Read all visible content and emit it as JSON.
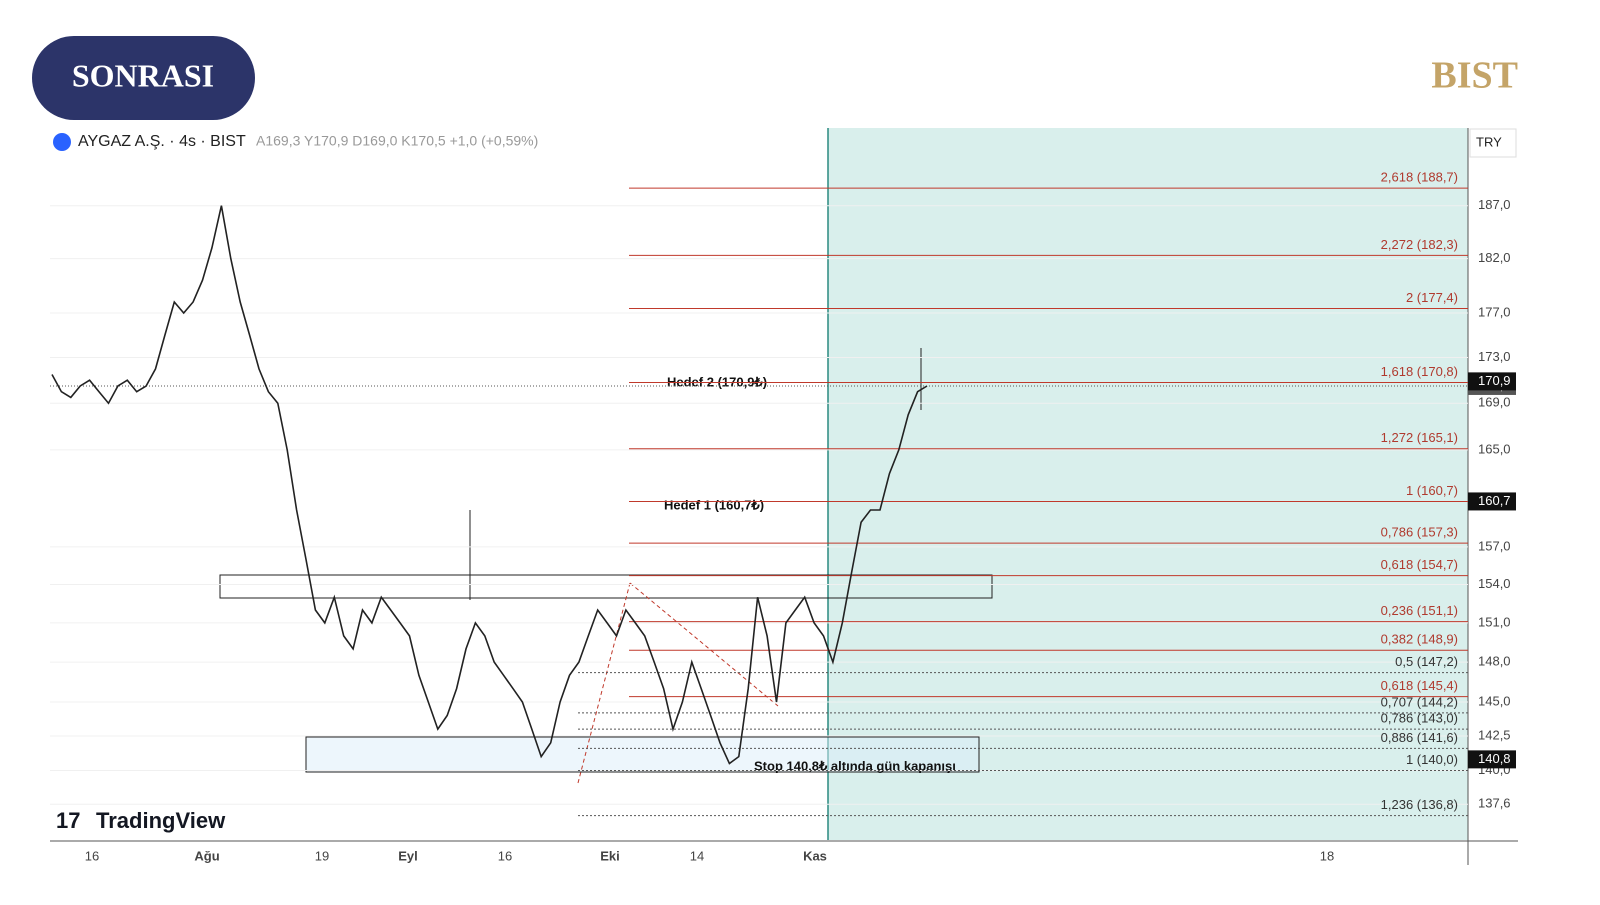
{
  "header": {
    "badge": "SONRASI",
    "brand": "BIST"
  },
  "symbol_bar": {
    "name": "AYGAZ A.Ş. · 4s · BIST",
    "ohlc": "A169,3 Y170,9 D169,0 K170,5 +1,0 (+0,59%)",
    "currency": "TRY"
  },
  "chart": {
    "scale": "log",
    "ylim": [
      135.1,
      194.6
    ],
    "yticks": [
      {
        "value": 187,
        "label": "187,0"
      },
      {
        "value": 182,
        "label": "182,0"
      },
      {
        "value": 177,
        "label": "177,0"
      },
      {
        "value": 173,
        "label": "173,0"
      },
      {
        "value": 169,
        "label": "169,0"
      },
      {
        "value": 165,
        "label": "165,0"
      },
      {
        "value": 157,
        "label": "157,0"
      },
      {
        "value": 154,
        "label": "154,0"
      },
      {
        "value": 151,
        "label": "151,0"
      },
      {
        "value": 148,
        "label": "148,0"
      },
      {
        "value": 145,
        "label": "145,0"
      },
      {
        "value": 142.5,
        "label": "142,5"
      },
      {
        "value": 140,
        "label": "140,0"
      },
      {
        "value": 137.6,
        "label": "137,6"
      }
    ],
    "x_labels": [
      "16",
      "Ağu",
      "19",
      "Eyl",
      "16",
      "Eki",
      "14",
      "Kas",
      "18"
    ],
    "closes": [
      171.5,
      170,
      169.5,
      170.5,
      171,
      170,
      169,
      170.5,
      171,
      170,
      170.5,
      172,
      175,
      178,
      177,
      178,
      180,
      183,
      187,
      182,
      178,
      175,
      172,
      170,
      169,
      165,
      160,
      156,
      152,
      151,
      153,
      150,
      149,
      152,
      151,
      153,
      152,
      151,
      150,
      147,
      145,
      143,
      144,
      146,
      149,
      151,
      150,
      148,
      147,
      146,
      145,
      143,
      141,
      142,
      145,
      147,
      148,
      150,
      152,
      151,
      150,
      152,
      151,
      150,
      148,
      146,
      143,
      145,
      148,
      146,
      144,
      142,
      140.5,
      141,
      146,
      153,
      150,
      145,
      151,
      152,
      153,
      151,
      150,
      148,
      151,
      155,
      159,
      160,
      160,
      163,
      165,
      168,
      170,
      170.5
    ],
    "last_price": {
      "value": 170.5,
      "label": "170,5"
    },
    "price_badges": [
      {
        "value": 170.9,
        "label": "170,9"
      },
      {
        "value": 160.7,
        "label": "160,7"
      },
      {
        "value": 140.8,
        "label": "140,8"
      }
    ],
    "fib_levels": [
      {
        "label": "2,618 (188,7)",
        "value": 188.7,
        "style": "solid"
      },
      {
        "label": "2,272 (182,3)",
        "value": 182.3,
        "style": "solid"
      },
      {
        "label": "2 (177,4)",
        "value": 177.4,
        "style": "solid"
      },
      {
        "label": "1,618 (170,8)",
        "value": 170.8,
        "style": "solid"
      },
      {
        "label": "1,272 (165,1)",
        "value": 165.1,
        "style": "solid"
      },
      {
        "label": "1 (160,7)",
        "value": 160.7,
        "style": "solid"
      },
      {
        "label": "0,786 (157,3)",
        "value": 157.3,
        "style": "solid"
      },
      {
        "label": "0,618 (154,7)",
        "value": 154.7,
        "style": "solid"
      },
      {
        "label": "0,236 (151,1)",
        "value": 151.1,
        "style": "solid"
      },
      {
        "label": "0,382 (148,9)",
        "value": 148.9,
        "style": "solid"
      },
      {
        "label": "0,5 (147,2)",
        "value": 147.2,
        "style": "dotted"
      },
      {
        "label": "0,618 (145,4)",
        "value": 145.4,
        "style": "solid"
      },
      {
        "label": "0,707 (144,2)",
        "value": 144.2,
        "style": "dotted"
      },
      {
        "label": "0,786 (143,0)",
        "value": 143.0,
        "style": "dotted"
      },
      {
        "label": "0,886 (141,6)",
        "value": 141.6,
        "style": "dotted"
      },
      {
        "label": "1 (140,0)",
        "value": 140.0,
        "style": "dotted"
      },
      {
        "label": "1,236 (136,8)",
        "value": 136.8,
        "style": "dotted"
      }
    ],
    "annotations": [
      "Hedef 2 (170,9₺)",
      "Hedef 1 (160,7₺)",
      "Stop 140,8₺ altında gün kapanışı"
    ],
    "watermark": "TradingView"
  }
}
